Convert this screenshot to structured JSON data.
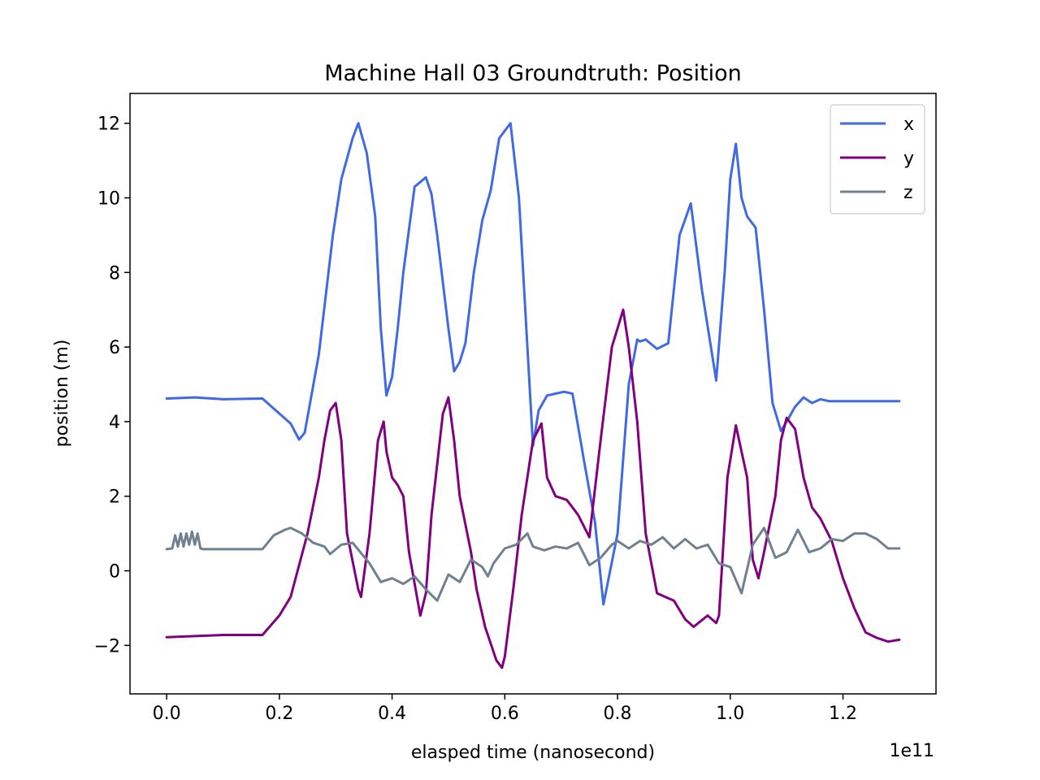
{
  "chart_data": {
    "type": "line",
    "title": "Machine Hall 03 Groundtruth: Position",
    "xlabel": "elasped time (nanosecond)",
    "ylabel": "position (m)",
    "x_offset_label": "1e11",
    "xlim": [
      -0.065,
      1.365
    ],
    "ylim": [
      -3.3,
      12.8
    ],
    "xticks": [
      0.0,
      0.2,
      0.4,
      0.6,
      0.8,
      1.0,
      1.2
    ],
    "xtick_labels": [
      "0.0",
      "0.2",
      "0.4",
      "0.6",
      "0.8",
      "1.0",
      "1.2"
    ],
    "yticks": [
      -2,
      0,
      2,
      4,
      6,
      8,
      10,
      12
    ],
    "ytick_labels": [
      "−2",
      "0",
      "2",
      "4",
      "6",
      "8",
      "10",
      "12"
    ],
    "grid": false,
    "legend_position": "upper right",
    "series": [
      {
        "name": "x",
        "color": "#4169e1",
        "x": [
          0.0,
          0.05,
          0.1,
          0.17,
          0.19,
          0.22,
          0.235,
          0.245,
          0.27,
          0.295,
          0.31,
          0.33,
          0.34,
          0.355,
          0.37,
          0.38,
          0.39,
          0.4,
          0.41,
          0.42,
          0.44,
          0.46,
          0.47,
          0.48,
          0.5,
          0.51,
          0.52,
          0.53,
          0.545,
          0.56,
          0.575,
          0.59,
          0.61,
          0.625,
          0.64,
          0.65,
          0.66,
          0.675,
          0.69,
          0.705,
          0.72,
          0.74,
          0.76,
          0.775,
          0.8,
          0.82,
          0.835,
          0.84,
          0.85,
          0.87,
          0.89,
          0.91,
          0.93,
          0.95,
          0.975,
          0.99,
          1.0,
          1.01,
          1.02,
          1.03,
          1.045,
          1.06,
          1.075,
          1.09,
          1.1,
          1.115,
          1.13,
          1.145,
          1.16,
          1.175,
          1.19,
          1.21,
          1.24,
          1.26,
          1.28,
          1.3
        ],
        "values": [
          4.62,
          4.65,
          4.6,
          4.62,
          4.35,
          3.95,
          3.52,
          3.7,
          5.8,
          9.0,
          10.5,
          11.6,
          12.0,
          11.2,
          9.5,
          6.5,
          4.7,
          5.2,
          6.5,
          8.0,
          10.3,
          10.55,
          10.1,
          9.0,
          6.5,
          5.35,
          5.6,
          6.1,
          8.0,
          9.4,
          10.2,
          11.6,
          12.0,
          10.0,
          6.0,
          3.35,
          4.3,
          4.7,
          4.75,
          4.8,
          4.75,
          3.0,
          1.3,
          -0.9,
          1.0,
          5.0,
          6.2,
          6.15,
          6.2,
          5.95,
          6.1,
          9.0,
          9.85,
          7.5,
          5.1,
          8.0,
          10.5,
          11.45,
          10.0,
          9.5,
          9.2,
          7.0,
          4.5,
          3.75,
          4.0,
          4.4,
          4.65,
          4.5,
          4.6,
          4.55,
          4.55,
          4.55,
          4.55,
          4.55,
          4.55,
          4.55
        ]
      },
      {
        "name": "y",
        "color": "#800080",
        "x": [
          0.0,
          0.05,
          0.1,
          0.17,
          0.2,
          0.22,
          0.25,
          0.27,
          0.28,
          0.29,
          0.3,
          0.31,
          0.32,
          0.34,
          0.345,
          0.36,
          0.375,
          0.385,
          0.39,
          0.4,
          0.41,
          0.42,
          0.43,
          0.45,
          0.46,
          0.47,
          0.49,
          0.5,
          0.51,
          0.52,
          0.54,
          0.55,
          0.565,
          0.585,
          0.595,
          0.6,
          0.615,
          0.63,
          0.65,
          0.665,
          0.675,
          0.69,
          0.71,
          0.73,
          0.75,
          0.77,
          0.79,
          0.81,
          0.82,
          0.835,
          0.85,
          0.87,
          0.885,
          0.9,
          0.92,
          0.935,
          0.96,
          0.975,
          0.98,
          0.995,
          1.01,
          1.03,
          1.04,
          1.05,
          1.06,
          1.08,
          1.09,
          1.1,
          1.115,
          1.13,
          1.145,
          1.16,
          1.18,
          1.2,
          1.22,
          1.24,
          1.26,
          1.28,
          1.3
        ],
        "values": [
          -1.78,
          -1.75,
          -1.72,
          -1.72,
          -1.2,
          -0.7,
          1.0,
          2.5,
          3.5,
          4.3,
          4.5,
          3.5,
          1.0,
          -0.5,
          -0.7,
          1.0,
          3.5,
          4.0,
          3.2,
          2.5,
          2.3,
          2.0,
          0.5,
          -1.2,
          -0.6,
          1.5,
          4.2,
          4.65,
          3.5,
          2.0,
          0.5,
          -0.5,
          -1.5,
          -2.4,
          -2.6,
          -2.3,
          -0.5,
          1.5,
          3.5,
          3.95,
          2.5,
          2.0,
          1.9,
          1.5,
          0.9,
          3.5,
          6.0,
          7.0,
          6.0,
          4.0,
          1.0,
          -0.6,
          -0.7,
          -0.8,
          -1.3,
          -1.5,
          -1.2,
          -1.4,
          -1.2,
          2.5,
          3.9,
          2.5,
          0.3,
          -0.2,
          0.5,
          2.0,
          3.5,
          4.1,
          3.8,
          2.5,
          1.7,
          1.4,
          0.8,
          -0.2,
          -1.0,
          -1.65,
          -1.8,
          -1.9,
          -1.85
        ]
      },
      {
        "name": "z",
        "color": "#708090",
        "x": [
          0.0,
          0.01,
          0.015,
          0.02,
          0.025,
          0.03,
          0.035,
          0.04,
          0.045,
          0.05,
          0.055,
          0.06,
          0.065,
          0.1,
          0.17,
          0.19,
          0.21,
          0.22,
          0.24,
          0.26,
          0.28,
          0.29,
          0.31,
          0.33,
          0.36,
          0.38,
          0.4,
          0.42,
          0.44,
          0.46,
          0.48,
          0.5,
          0.52,
          0.54,
          0.56,
          0.57,
          0.58,
          0.6,
          0.62,
          0.64,
          0.65,
          0.67,
          0.69,
          0.71,
          0.73,
          0.75,
          0.77,
          0.79,
          0.8,
          0.82,
          0.84,
          0.86,
          0.88,
          0.9,
          0.92,
          0.94,
          0.96,
          0.98,
          1.0,
          1.02,
          1.04,
          1.06,
          1.08,
          1.1,
          1.12,
          1.14,
          1.16,
          1.18,
          1.2,
          1.22,
          1.24,
          1.26,
          1.28,
          1.3
        ],
        "values": [
          0.58,
          0.6,
          0.95,
          0.65,
          1.0,
          0.65,
          1.0,
          0.7,
          1.05,
          0.7,
          1.0,
          0.6,
          0.58,
          0.58,
          0.58,
          0.95,
          1.1,
          1.15,
          1.0,
          0.75,
          0.65,
          0.45,
          0.7,
          0.75,
          0.2,
          -0.3,
          -0.2,
          -0.35,
          -0.15,
          -0.5,
          -0.8,
          -0.1,
          -0.3,
          0.3,
          0.1,
          -0.15,
          0.2,
          0.6,
          0.7,
          1.0,
          0.65,
          0.55,
          0.65,
          0.6,
          0.75,
          0.15,
          0.35,
          0.7,
          0.8,
          0.6,
          0.8,
          0.7,
          0.9,
          0.6,
          0.85,
          0.6,
          0.7,
          0.2,
          0.1,
          -0.6,
          0.7,
          1.15,
          0.35,
          0.5,
          1.1,
          0.5,
          0.6,
          0.85,
          0.8,
          1.0,
          1.0,
          0.85,
          0.6,
          0.6
        ]
      }
    ]
  }
}
